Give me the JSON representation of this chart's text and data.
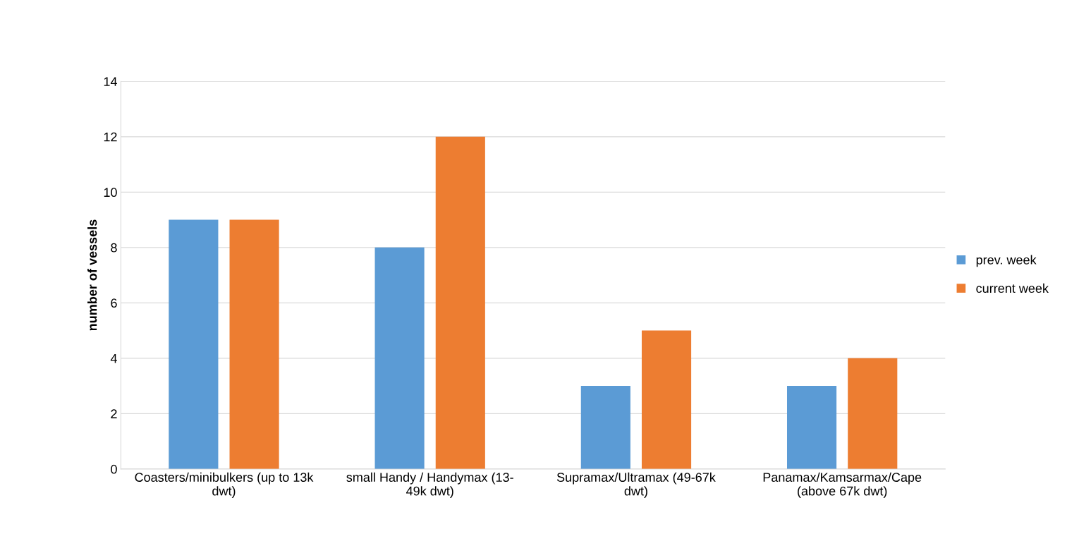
{
  "chart_data": {
    "type": "bar",
    "ylabel": "number of vessels",
    "categories": [
      "Coasters/minibulkers (up to 13k\ndwt)",
      "small Handy / Handymax (13-\n49k dwt)",
      "Supramax/Ultramax (49-67k\ndwt)",
      "Panamax/Kamsarmax/Cape\n(above 67k dwt)"
    ],
    "series": [
      {
        "name": "prev. week",
        "color": "#5b9bd5",
        "values": [
          9,
          8,
          3,
          3
        ]
      },
      {
        "name": "current week",
        "color": "#ed7d31",
        "values": [
          9,
          12,
          5,
          4
        ]
      }
    ],
    "ylim": [
      0,
      14
    ],
    "yticks": [
      0,
      2,
      4,
      6,
      8,
      10,
      12,
      14
    ],
    "grid": "y",
    "legend": "right"
  }
}
